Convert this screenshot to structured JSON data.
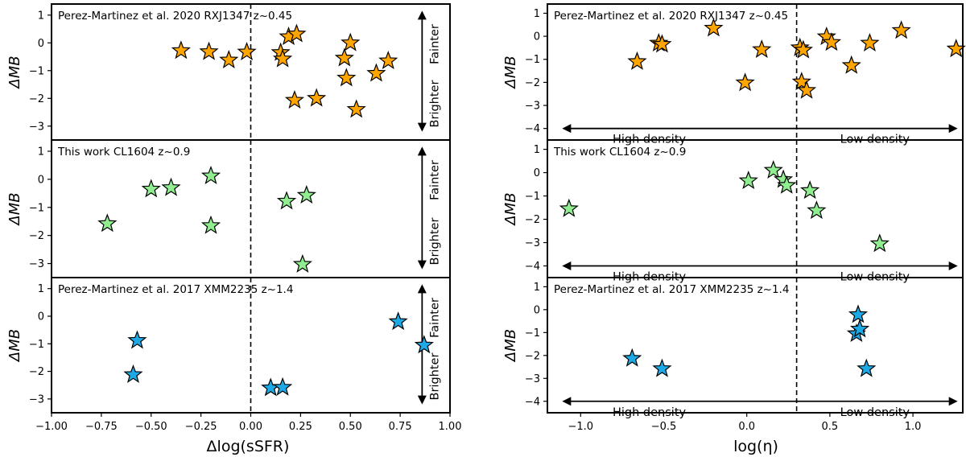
{
  "colors": {
    "orange": "#ffa500",
    "green": "#90ee90",
    "blue": "#1ca9e6",
    "edge": "#000000"
  },
  "chart_data": [
    {
      "type": "scatter",
      "title": "Perez-Martinez et al. 2020 RXJ1347 z~0.45",
      "xlabel": "Δlog(sSFR)",
      "ylabel": "ΔMB",
      "xlim": [
        -1.0,
        1.0
      ],
      "ylim": [
        -3.5,
        1.4
      ],
      "xticks": [
        -1.0,
        -0.75,
        -0.5,
        -0.25,
        0.0,
        0.25,
        0.5,
        0.75,
        1.0
      ],
      "xtick_labels": [
        "−1.00",
        "−0.75",
        "−0.50",
        "−0.25",
        "0.00",
        "0.25",
        "0.50",
        "0.75",
        "1.00"
      ],
      "yticks": [
        1,
        0,
        -1,
        -2,
        -3
      ],
      "ytick_labels": [
        "1",
        "0",
        "−1",
        "−2",
        "−3"
      ],
      "vline": 0.0,
      "color_key": "orange",
      "annotation_mode": "vertical",
      "annot_top": "Fainter",
      "annot_bottom": "Brighter",
      "arrow_x": 0.86,
      "x": [
        -0.35,
        -0.21,
        -0.11,
        -0.02,
        0.15,
        0.16,
        0.19,
        0.23,
        0.22,
        0.33,
        0.47,
        0.48,
        0.5,
        0.53,
        0.63,
        0.69
      ],
      "y": [
        -0.28,
        -0.32,
        -0.62,
        -0.33,
        -0.35,
        -0.58,
        0.22,
        0.32,
        -2.07,
        -2.0,
        -0.55,
        -1.27,
        0.0,
        -2.4,
        -1.1,
        -0.65
      ]
    },
    {
      "type": "scatter",
      "title": "This work CL1604 z~0.9",
      "xlabel": "Δlog(sSFR)",
      "ylabel": "ΔMB",
      "xlim": [
        -1.0,
        1.0
      ],
      "ylim": [
        -3.5,
        1.4
      ],
      "xticks": [
        -1.0,
        -0.75,
        -0.5,
        -0.25,
        0.0,
        0.25,
        0.5,
        0.75,
        1.0
      ],
      "xtick_labels": [
        "−1.00",
        "−0.75",
        "−0.50",
        "−0.25",
        "0.00",
        "0.25",
        "0.50",
        "0.75",
        "1.00"
      ],
      "yticks": [
        1,
        0,
        -1,
        -2,
        -3
      ],
      "ytick_labels": [
        "1",
        "0",
        "−1",
        "−2",
        "−3"
      ],
      "vline": 0.0,
      "color_key": "green",
      "annotation_mode": "vertical",
      "annot_top": "Fainter",
      "annot_bottom": "Brighter",
      "arrow_x": 0.86,
      "x": [
        -0.72,
        -0.5,
        -0.4,
        -0.2,
        -0.2,
        0.18,
        0.28,
        0.26
      ],
      "y": [
        -1.58,
        -0.35,
        -0.3,
        0.12,
        -1.65,
        -0.78,
        -0.57,
        -3.03
      ]
    },
    {
      "type": "scatter",
      "title": "Perez-Martinez et al. 2017 XMM2235 z~1.4",
      "xlabel": "Δlog(sSFR)",
      "ylabel": "ΔMB",
      "xlim": [
        -1.0,
        1.0
      ],
      "ylim": [
        -3.5,
        1.4
      ],
      "xticks": [
        -1.0,
        -0.75,
        -0.5,
        -0.25,
        0.0,
        0.25,
        0.5,
        0.75,
        1.0
      ],
      "xtick_labels": [
        "−1.00",
        "−0.75",
        "−0.50",
        "−0.25",
        "0.00",
        "0.25",
        "0.50",
        "0.75",
        "1.00"
      ],
      "yticks": [
        1,
        0,
        -1,
        -2,
        -3
      ],
      "ytick_labels": [
        "1",
        "0",
        "−1",
        "−2",
        "−3"
      ],
      "vline": 0.0,
      "color_key": "blue",
      "annotation_mode": "vertical",
      "annot_top": "Fainter",
      "annot_bottom": "Brighter",
      "arrow_x": 0.86,
      "x": [
        -0.57,
        -0.59,
        0.1,
        0.16,
        0.74,
        0.87
      ],
      "y": [
        -0.88,
        -2.12,
        -2.6,
        -2.58,
        -0.2,
        -1.05
      ]
    },
    {
      "type": "scatter",
      "title": "Perez-Martinez et al. 2020 RXJ1347 z~0.45",
      "xlabel": "log(η)",
      "ylabel": "ΔMB",
      "xlim": [
        -1.2,
        1.3
      ],
      "ylim": [
        -4.5,
        1.4
      ],
      "xticks": [
        -1.0,
        -0.5,
        0.0,
        0.5,
        1.0
      ],
      "xtick_labels": [
        "−1.0",
        "−0.5",
        "0.0",
        "0.5",
        "1.0"
      ],
      "yticks": [
        1,
        0,
        -1,
        -2,
        -3,
        -4
      ],
      "ytick_labels": [
        "1",
        "0",
        "−1",
        "−2",
        "−3",
        "−4"
      ],
      "vline": 0.3,
      "color_key": "orange",
      "annotation_mode": "horizontal",
      "annot_left": "High density",
      "annot_right": "Low density",
      "arrow_y": -4.0,
      "x": [
        -0.66,
        -0.53,
        -0.51,
        -0.2,
        0.09,
        -0.01,
        0.32,
        0.33,
        0.34,
        0.36,
        0.48,
        0.51,
        0.63,
        0.74,
        0.93,
        1.26
      ],
      "y": [
        -1.1,
        -0.3,
        -0.35,
        0.35,
        -0.58,
        -2.02,
        -0.5,
        -1.98,
        -0.6,
        -2.35,
        -0.02,
        -0.27,
        -1.27,
        -0.3,
        0.25,
        -0.55
      ]
    },
    {
      "type": "scatter",
      "title": "This work CL1604 z~0.9",
      "xlabel": "log(η)",
      "ylabel": "ΔMB",
      "xlim": [
        -1.2,
        1.3
      ],
      "ylim": [
        -4.5,
        1.4
      ],
      "xticks": [
        -1.0,
        -0.5,
        0.0,
        0.5,
        1.0
      ],
      "xtick_labels": [
        "−1.0",
        "−0.5",
        "0.0",
        "0.5",
        "1.0"
      ],
      "yticks": [
        1,
        0,
        -1,
        -2,
        -3,
        -4
      ],
      "ytick_labels": [
        "1",
        "0",
        "−1",
        "−2",
        "−3",
        "−4"
      ],
      "vline": 0.3,
      "color_key": "green",
      "annotation_mode": "horizontal",
      "annot_left": "High density",
      "annot_right": "Low density",
      "arrow_y": -4.0,
      "x": [
        -1.07,
        0.01,
        0.16,
        0.22,
        0.24,
        0.38,
        0.42,
        0.8
      ],
      "y": [
        -1.55,
        -0.35,
        0.1,
        -0.3,
        -0.55,
        -0.77,
        -1.63,
        -3.05
      ]
    },
    {
      "type": "scatter",
      "title": "Perez-Martinez et al. 2017 XMM2235 z~1.4",
      "xlabel": "log(η)",
      "ylabel": "ΔMB",
      "xlim": [
        -1.2,
        1.3
      ],
      "ylim": [
        -4.5,
        1.4
      ],
      "xticks": [
        -1.0,
        -0.5,
        0.0,
        0.5,
        1.0
      ],
      "xtick_labels": [
        "−1.0",
        "−0.5",
        "0.0",
        "0.5",
        "1.0"
      ],
      "yticks": [
        1,
        0,
        -1,
        -2,
        -3,
        -4
      ],
      "ytick_labels": [
        "1",
        "0",
        "−1",
        "−2",
        "−3",
        "−4"
      ],
      "vline": 0.3,
      "color_key": "blue",
      "annotation_mode": "horizontal",
      "annot_left": "High density",
      "annot_right": "Low density",
      "arrow_y": -4.0,
      "x": [
        -0.69,
        -0.51,
        0.66,
        0.67,
        0.68,
        0.72
      ],
      "y": [
        -2.13,
        -2.58,
        -1.05,
        -0.22,
        -0.85,
        -2.58
      ]
    }
  ],
  "axis_labels": {
    "ylabel": "ΔMB",
    "left_xlabel": "Δlog(sSFR)",
    "right_xlabel": "log(η)"
  }
}
